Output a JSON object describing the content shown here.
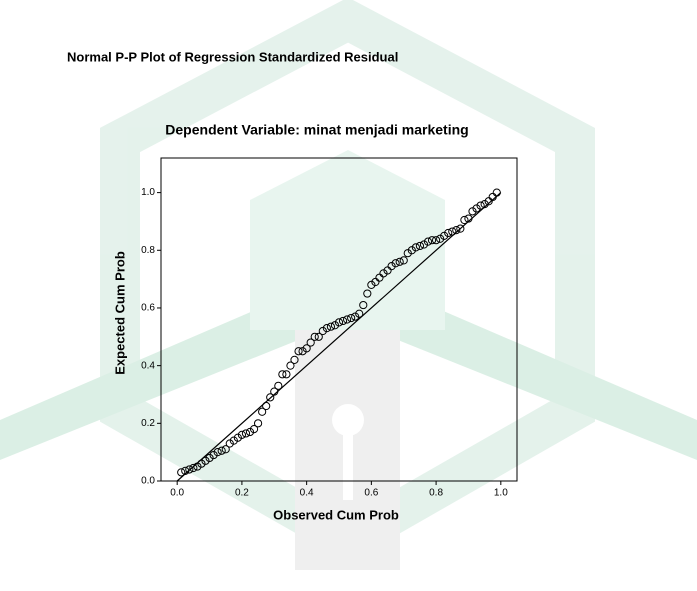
{
  "chart_data": {
    "type": "scatter",
    "title": "Normal P-P Plot of Regression Standardized Residual",
    "subtitle": "Dependent Variable: minat menjadi marketing",
    "x_label": "Observed Cum Prob",
    "y_label": "Expected Cum Prob",
    "xlim": [
      -0.05,
      1.05
    ],
    "ylim": [
      0,
      1.12
    ],
    "xticks": [
      {
        "value": 0,
        "label": "0.0"
      },
      0.2,
      0.4,
      0.6,
      0.8,
      {
        "value": 1,
        "label": "1.0"
      }
    ],
    "yticks": [
      {
        "value": 0,
        "label": "0.0"
      },
      0.2,
      0.4,
      0.6,
      0.8,
      {
        "value": 1,
        "label": "1.0"
      }
    ],
    "reference_line": {
      "x": [
        0,
        1
      ],
      "y": [
        0,
        1
      ]
    },
    "x": [
      0.0125,
      0.025,
      0.0375,
      0.05,
      0.0625,
      0.075,
      0.0875,
      0.1,
      0.1125,
      0.125,
      0.1375,
      0.15,
      0.1625,
      0.175,
      0.1875,
      0.2,
      0.2125,
      0.225,
      0.2375,
      0.25,
      0.2625,
      0.275,
      0.2875,
      0.3,
      0.3125,
      0.325,
      0.3375,
      0.35,
      0.3625,
      0.375,
      0.3875,
      0.4,
      0.4125,
      0.425,
      0.4375,
      0.45,
      0.4625,
      0.475,
      0.4875,
      0.5,
      0.5125,
      0.525,
      0.5375,
      0.55,
      0.5625,
      0.575,
      0.5875,
      0.6,
      0.6125,
      0.625,
      0.6375,
      0.65,
      0.6625,
      0.675,
      0.6875,
      0.7,
      0.7125,
      0.725,
      0.7375,
      0.75,
      0.7625,
      0.775,
      0.7875,
      0.8,
      0.8125,
      0.825,
      0.8375,
      0.85,
      0.8625,
      0.875,
      0.8875,
      0.9,
      0.9125,
      0.925,
      0.9375,
      0.95,
      0.9625,
      0.975,
      0.9875
    ],
    "values": [
      0.03,
      0.035,
      0.04,
      0.045,
      0.05,
      0.06,
      0.07,
      0.08,
      0.09,
      0.1,
      0.105,
      0.11,
      0.13,
      0.14,
      0.15,
      0.16,
      0.165,
      0.17,
      0.18,
      0.2,
      0.24,
      0.26,
      0.29,
      0.31,
      0.33,
      0.37,
      0.37,
      0.4,
      0.42,
      0.45,
      0.45,
      0.46,
      0.48,
      0.5,
      0.5,
      0.52,
      0.53,
      0.535,
      0.54,
      0.55,
      0.555,
      0.56,
      0.565,
      0.57,
      0.58,
      0.61,
      0.65,
      0.68,
      0.69,
      0.705,
      0.72,
      0.73,
      0.745,
      0.755,
      0.76,
      0.765,
      0.79,
      0.8,
      0.81,
      0.815,
      0.82,
      0.83,
      0.835,
      0.835,
      0.84,
      0.85,
      0.86,
      0.865,
      0.87,
      0.875,
      0.905,
      0.91,
      0.935,
      0.945,
      0.955,
      0.96,
      0.97,
      0.985,
      1.0
    ]
  }
}
